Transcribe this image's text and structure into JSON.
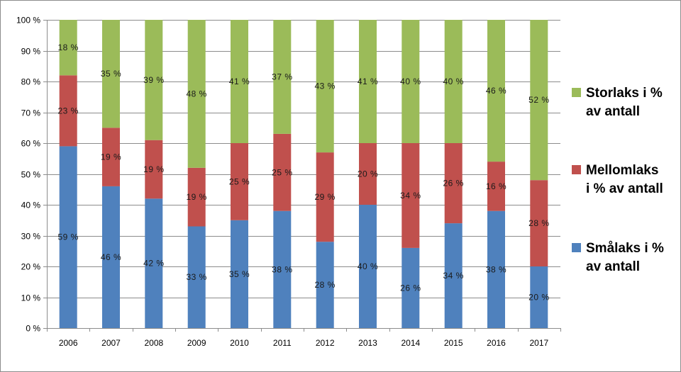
{
  "colors": {
    "small": "#4f81bd",
    "medium": "#c0504d",
    "large": "#9bbb59",
    "grid": "#8c8c8c"
  },
  "chart_data": {
    "type": "bar",
    "stacked": true,
    "categories": [
      "2006",
      "2007",
      "2008",
      "2009",
      "2010",
      "2011",
      "2012",
      "2013",
      "2014",
      "2015",
      "2016",
      "2017"
    ],
    "ylim": [
      0,
      100
    ],
    "yticks": [
      0,
      10,
      20,
      30,
      40,
      50,
      60,
      70,
      80,
      90,
      100
    ],
    "ytick_labels": [
      "0 %",
      "10 %",
      "20 %",
      "30 %",
      "40 %",
      "50 %",
      "60 %",
      "70 %",
      "80 %",
      "90 %",
      "100 %"
    ],
    "grid": true,
    "legend_position": "right",
    "series": [
      {
        "key": "small",
        "name_lines": [
          "Smålaks i %",
          "av antall"
        ],
        "values": [
          59,
          46,
          42,
          33,
          35,
          38,
          28,
          40,
          26,
          34,
          38,
          20
        ],
        "labels": [
          "59 %",
          "46 %",
          "42 %",
          "33 %",
          "35 %",
          "38 %",
          "28 %",
          "40 %",
          "26 %",
          "34 %",
          "38 %",
          "20 %"
        ]
      },
      {
        "key": "medium",
        "name_lines": [
          "Mellomlaks",
          "i % av antall"
        ],
        "values": [
          23,
          19,
          19,
          19,
          25,
          25,
          29,
          20,
          34,
          26,
          16,
          28
        ],
        "labels": [
          "23 %",
          "19 %",
          "19 %",
          "19 %",
          "25 %",
          "25 %",
          "29 %",
          "20 %",
          "34 %",
          "26 %",
          "16 %",
          "28 %"
        ]
      },
      {
        "key": "large",
        "name_lines": [
          "Storlaks i %",
          "av antall"
        ],
        "values": [
          18,
          35,
          39,
          48,
          41,
          37,
          43,
          41,
          40,
          40,
          46,
          52
        ],
        "labels": [
          "18 %",
          "35 %",
          "39 %",
          "48 %",
          "41 %",
          "37 %",
          "43 %",
          "41 %",
          "40 %",
          "40 %",
          "46 %",
          "52 %"
        ]
      }
    ]
  }
}
